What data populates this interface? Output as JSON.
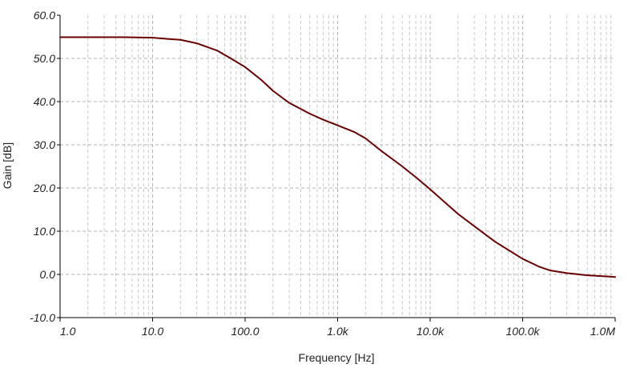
{
  "chart_data": {
    "type": "line",
    "title": "",
    "xlabel": "Frequency [Hz]",
    "ylabel": "Gain [dB]",
    "x_scale": "log",
    "xlim": [
      1,
      1000000
    ],
    "ylim": [
      -10,
      60
    ],
    "grid": true,
    "x_tick_values": [
      1,
      10,
      100,
      1000,
      10000,
      100000,
      1000000
    ],
    "x_tick_labels": [
      "1.0",
      "10.0",
      "100.0",
      "1.0k",
      "10.0k",
      "100.0k",
      "1.0M"
    ],
    "y_tick_values": [
      60,
      50,
      40,
      30,
      20,
      10,
      0,
      -10
    ],
    "y_tick_labels": [
      "60.0",
      "50.0",
      "40.0",
      "30.0",
      "20.0",
      "10.0",
      "0.0",
      "-10.0"
    ],
    "series": [
      {
        "name": "",
        "color": "#6b0000",
        "x": [
          1,
          2,
          5,
          10,
          15,
          20,
          30,
          50,
          70,
          100,
          150,
          200,
          300,
          500,
          700,
          1000,
          1500,
          2000,
          3000,
          5000,
          7000,
          10000,
          20000,
          50000,
          100000,
          150000,
          200000,
          300000,
          500000,
          1000000
        ],
        "y": [
          54.9,
          54.9,
          54.9,
          54.8,
          54.5,
          54.3,
          53.5,
          51.8,
          50.0,
          48.0,
          45.0,
          42.5,
          39.7,
          37.2,
          35.8,
          34.5,
          33.0,
          31.5,
          28.5,
          25.0,
          22.5,
          19.7,
          14.0,
          7.6,
          3.6,
          1.8,
          0.9,
          0.3,
          -0.2,
          -0.6
        ]
      }
    ]
  }
}
